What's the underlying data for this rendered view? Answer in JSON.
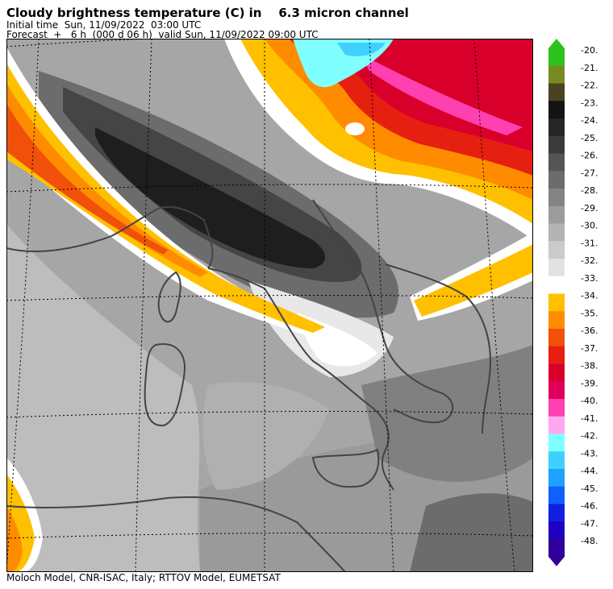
{
  "header": {
    "title": "Cloudy brightness temperature (C) in    6.3 micron channel",
    "initial": "Initial time  Sun, 11/09/2022  03:00 UTC",
    "forecast": "Forecast  +   6 h  (000 d 06 h)  valid Sun, 11/09/2022 09:00 UTC"
  },
  "footer": "Moloch Model, CNR-ISAC, Italy; RTTOV Model, EUMETSAT",
  "legend": [
    {
      "label": "-20.",
      "color": "#2bc21b"
    },
    {
      "label": "-21.",
      "color": "#7a8a22"
    },
    {
      "label": "-22.",
      "color": "#4a4220"
    },
    {
      "label": "-23.",
      "color": "#141414"
    },
    {
      "label": "-24.",
      "color": "#262626"
    },
    {
      "label": "-25.",
      "color": "#3a3a3a"
    },
    {
      "label": "-26.",
      "color": "#555555"
    },
    {
      "label": "-27.",
      "color": "#6c6c6c"
    },
    {
      "label": "-28.",
      "color": "#848484"
    },
    {
      "label": "-29.",
      "color": "#9c9c9c"
    },
    {
      "label": "-30.",
      "color": "#b3b3b3"
    },
    {
      "label": "-31.",
      "color": "#cbcbcb"
    },
    {
      "label": "-32.",
      "color": "#e2e2e2"
    },
    {
      "label": "-33.",
      "color": "#ffffff"
    },
    {
      "label": "-34.",
      "color": "#ffc000"
    },
    {
      "label": "-35.",
      "color": "#ff8c00"
    },
    {
      "label": "-36.",
      "color": "#f0500a"
    },
    {
      "label": "-37.",
      "color": "#e52010"
    },
    {
      "label": "-38.",
      "color": "#d8002a"
    },
    {
      "label": "-39.",
      "color": "#e0005c"
    },
    {
      "label": "-40.",
      "color": "#ff40b0"
    },
    {
      "label": "-41.",
      "color": "#ffa8f0"
    },
    {
      "label": "-42.",
      "color": "#80ffff"
    },
    {
      "label": "-43.",
      "color": "#40d0ff"
    },
    {
      "label": "-44.",
      "color": "#20a0ff"
    },
    {
      "label": "-45.",
      "color": "#1060ff"
    },
    {
      "label": "-46.",
      "color": "#1020e0"
    },
    {
      "label": "-47.",
      "color": "#2000c0"
    },
    {
      "label": "-48.",
      "color": "#30009a"
    }
  ]
}
